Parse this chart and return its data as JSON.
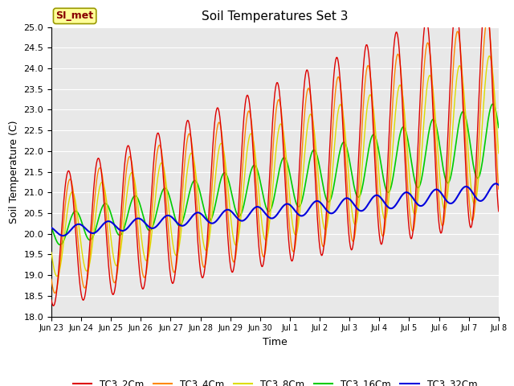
{
  "title": "Soil Temperatures Set 3",
  "xlabel": "Time",
  "ylabel": "Soil Temperature (C)",
  "ylim": [
    18.0,
    25.0
  ],
  "yticks": [
    18.0,
    18.5,
    19.0,
    19.5,
    20.0,
    20.5,
    21.0,
    21.5,
    22.0,
    22.5,
    23.0,
    23.5,
    24.0,
    24.5,
    25.0
  ],
  "fig_bg_color": "#ffffff",
  "plot_bg_color": "#e8e8e8",
  "grid_color": "#ffffff",
  "series_colors": {
    "TC3_2Cm": "#dd0000",
    "TC3_4Cm": "#ff8800",
    "TC3_8Cm": "#dddd00",
    "TC3_16Cm": "#00cc00",
    "TC3_32Cm": "#0000dd"
  },
  "legend_label": "SI_met",
  "legend_bg": "#ffff99",
  "legend_border": "#999900",
  "x_tick_labels": [
    "Jun 23",
    "Jun 24",
    "Jun 25",
    "Jun 26",
    "Jun 27",
    "Jun 28",
    "Jun 29",
    "Jun 30",
    "Jul 1",
    "Jul 2",
    "Jul 3",
    "Jul 4",
    "Jul 5",
    "Jul 6",
    "Jul 7",
    "Jul 8"
  ],
  "title_fontsize": 11,
  "axis_label_fontsize": 9,
  "tick_fontsize": 8
}
